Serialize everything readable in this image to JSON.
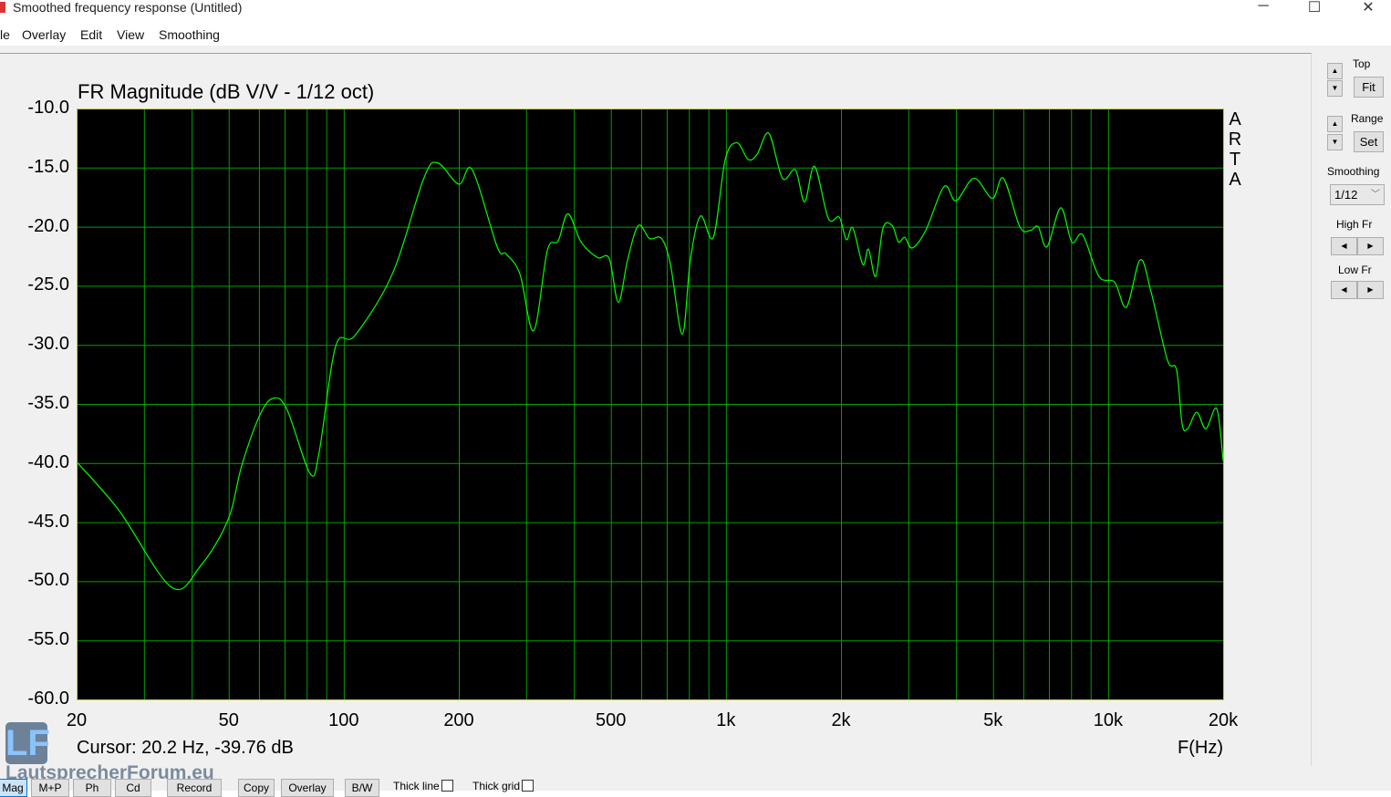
{
  "window": {
    "title": "Smoothed frequency response (Untitled)",
    "minimize": "─",
    "maximize": "☐",
    "close": "✕"
  },
  "menu": [
    "le",
    "Overlay",
    "Edit",
    "View",
    "Smoothing"
  ],
  "plot": {
    "title": "FR Magnitude (dB V/V - 1/12 oct)",
    "watermark": [
      "A",
      "R",
      "T",
      "A"
    ],
    "cursor": "Cursor: 20.2 Hz, -39.76 dB",
    "xunit": "F(Hz)"
  },
  "chart_data": {
    "type": "line",
    "title": "FR Magnitude (dB V/V - 1/12 oct)",
    "xlabel": "F(Hz)",
    "ylabel": "",
    "xscale": "log",
    "xlim": [
      20,
      20000
    ],
    "ylim": [
      -60,
      -10
    ],
    "grid": true,
    "background": "#000000",
    "line_color": "#00ff00",
    "grid_color": "#00a000",
    "yticks": [
      "-10.0",
      "-15.0",
      "-20.0",
      "-25.0",
      "-30.0",
      "-35.0",
      "-40.0",
      "-45.0",
      "-50.0",
      "-55.0",
      "-60.0"
    ],
    "xticks": [
      {
        "v": 20,
        "l": "20"
      },
      {
        "v": 50,
        "l": "50"
      },
      {
        "v": 100,
        "l": "100"
      },
      {
        "v": 200,
        "l": "200"
      },
      {
        "v": 500,
        "l": "500"
      },
      {
        "v": 1000,
        "l": "1k"
      },
      {
        "v": 2000,
        "l": "2k"
      },
      {
        "v": 5000,
        "l": "5k"
      },
      {
        "v": 10000,
        "l": "10k"
      },
      {
        "v": 20000,
        "l": "20k"
      }
    ],
    "x": [
      20,
      25.8,
      35.4,
      42.2,
      49.8,
      54.1,
      60.4,
      65.6,
      71.1,
      81.7,
      86.3,
      95.3,
      107,
      134,
      162,
      176,
      200,
      217,
      252,
      266,
      289,
      314,
      341,
      364,
      386,
      418,
      461,
      495,
      523,
      553,
      590,
      631,
      678,
      716,
      769,
      807,
      858,
      927,
      996,
      1069,
      1143,
      1206,
      1295,
      1406,
      1520,
      1606,
      1706,
      1853,
      1979,
      2066,
      2148,
      2281,
      2360,
      2466,
      2577,
      2722,
      2828,
      2938,
      3072,
      3334,
      3724,
      4000,
      4460,
      4980,
      5320,
      5875,
      6270,
      6560,
      6920,
      7516,
      8036,
      8580,
      9460,
      10400,
      11170,
      12130,
      12950,
      14300,
      15100,
      15620,
      16140,
      17060,
      18020,
      19240,
      20000
    ],
    "y": [
      -39.9,
      -44.0,
      -50.5,
      -48.7,
      -44.8,
      -40.2,
      -35.9,
      -34.5,
      -35.5,
      -40.9,
      -39.0,
      -30.1,
      -29.2,
      -24.0,
      -15.9,
      -14.6,
      -16.4,
      -15.2,
      -21.7,
      -22.3,
      -24.0,
      -28.8,
      -22.0,
      -21.2,
      -18.9,
      -21.3,
      -22.6,
      -22.7,
      -26.4,
      -22.8,
      -19.9,
      -21.0,
      -21.0,
      -23.2,
      -29.1,
      -22.8,
      -19.1,
      -20.9,
      -14.3,
      -12.9,
      -14.3,
      -13.9,
      -12.1,
      -15.9,
      -15.2,
      -17.9,
      -14.9,
      -19.3,
      -19.2,
      -21.1,
      -20.1,
      -23.2,
      -21.9,
      -24.2,
      -20.1,
      -19.9,
      -21.3,
      -20.9,
      -21.8,
      -20.3,
      -16.6,
      -17.8,
      -15.9,
      -17.6,
      -15.9,
      -20.0,
      -20.3,
      -20.0,
      -21.7,
      -18.4,
      -21.3,
      -20.7,
      -24.2,
      -24.7,
      -26.8,
      -22.8,
      -25.5,
      -31.3,
      -32.1,
      -36.7,
      -37.1,
      -35.7,
      -37.1,
      -35.4,
      -39.8
    ]
  },
  "side": {
    "top_label": "Top",
    "fit": "Fit",
    "range_label": "Range",
    "set": "Set",
    "smoothing_label": "Smoothing",
    "smoothing_value": "1/12",
    "high_fr": "High Fr",
    "low_fr": "Low Fr",
    "up": "▲",
    "down": "▼",
    "left": "◀",
    "right": "▶",
    "dropdown": "﹀"
  },
  "logo": {
    "letters": "LF",
    "text": "LautsprecherForum.eu"
  },
  "bottom": {
    "buttons": [
      "Mag",
      "M+P",
      "Ph",
      "Cd",
      "Record",
      "Copy",
      "Overlay",
      "B/W"
    ],
    "thick_line": "Thick line",
    "thick_grid": "Thick grid"
  }
}
